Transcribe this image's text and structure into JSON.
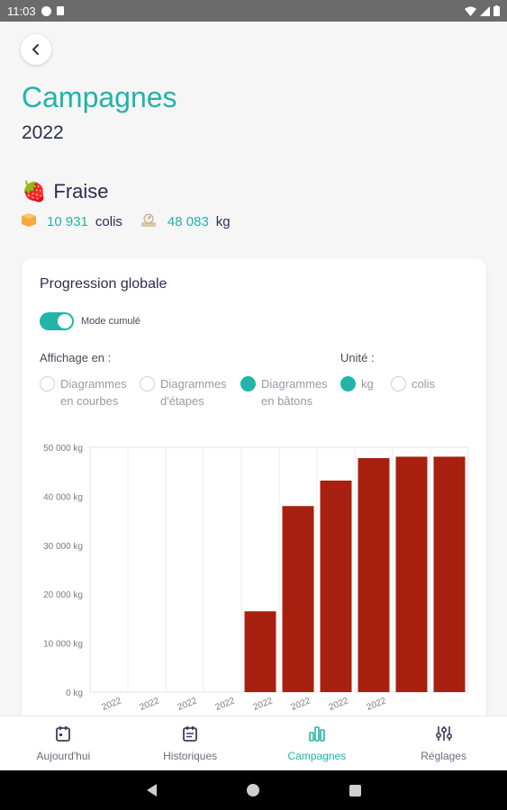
{
  "status_bar": {
    "time": "11:03"
  },
  "header": {
    "title": "Campagnes",
    "year": "2022"
  },
  "product": {
    "icon": "strawberry-icon",
    "icon_glyph": "🍓",
    "name": "Fraise",
    "colis_value": "10 931",
    "colis_unit": "colis",
    "kg_value": "48 083",
    "kg_unit": "kg"
  },
  "card": {
    "title": "Progression globale",
    "toggle_label": "Mode cumulé",
    "affichage_label": "Affichage en :",
    "unite_label": "Unité :",
    "display_options": [
      {
        "line1": "Diagrammes",
        "line2": "en courbes",
        "selected": false
      },
      {
        "line1": "Diagrammes",
        "line2": "d'étapes",
        "selected": false
      },
      {
        "line1": "Diagrammes",
        "line2": "en bâtons",
        "selected": true
      }
    ],
    "unit_options": [
      {
        "label": "kg",
        "selected": true
      },
      {
        "label": "colis",
        "selected": false
      }
    ]
  },
  "chart_data": {
    "type": "bar",
    "categories": [
      "2022",
      "2022",
      "2022",
      "2022",
      "2022",
      "2022",
      "2022",
      "2022",
      "",
      ""
    ],
    "values": [
      0,
      0,
      0,
      0,
      16500,
      38000,
      43200,
      47800,
      48083,
      48083
    ],
    "ylim": [
      0,
      50000
    ],
    "yticks": [
      "0 kg",
      "10 000 kg",
      "20 000 kg",
      "30 000 kg",
      "40 000 kg",
      "50 000 kg"
    ],
    "bar_color": "#a8200f",
    "grid": true
  },
  "bottom_nav": [
    {
      "label": "Aujourd'hui",
      "icon": "calendar-today-icon",
      "active": false
    },
    {
      "label": "Historiques",
      "icon": "calendar-history-icon",
      "active": false
    },
    {
      "label": "Campagnes",
      "icon": "bar-chart-icon",
      "active": true
    },
    {
      "label": "Réglages",
      "icon": "sliders-icon",
      "active": false
    }
  ],
  "colors": {
    "accent": "#21b4a7",
    "text_dark": "#2b2d4f",
    "bar": "#a8200f"
  }
}
